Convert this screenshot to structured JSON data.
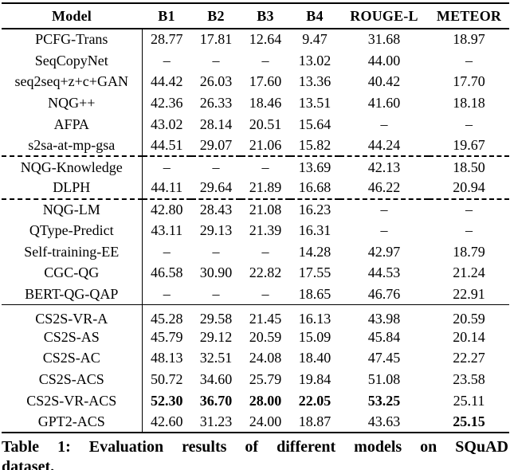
{
  "table": {
    "headers": [
      "Model",
      "B1",
      "B2",
      "B3",
      "B4",
      "ROUGE-L",
      "METEOR"
    ],
    "missing_value_glyph": "–",
    "rows": [
      {
        "model": "PCFG-Trans",
        "values": [
          "28.77",
          "17.81",
          "12.64",
          "9.47",
          "31.68",
          "18.97"
        ],
        "bold": [],
        "separator_before": null
      },
      {
        "model": "SeqCopyNet",
        "values": [
          "–",
          "–",
          "–",
          "13.02",
          "44.00",
          "–"
        ],
        "bold": [],
        "separator_before": null
      },
      {
        "model": "seq2seq+z+c+GAN",
        "values": [
          "44.42",
          "26.03",
          "17.60",
          "13.36",
          "40.42",
          "17.70"
        ],
        "bold": [],
        "separator_before": null
      },
      {
        "model": "NQG++",
        "values": [
          "42.36",
          "26.33",
          "18.46",
          "13.51",
          "41.60",
          "18.18"
        ],
        "bold": [],
        "separator_before": null
      },
      {
        "model": "AFPA",
        "values": [
          "43.02",
          "28.14",
          "20.51",
          "15.64",
          "–",
          "–"
        ],
        "bold": [],
        "separator_before": null
      },
      {
        "model": "s2sa-at-mp-gsa",
        "values": [
          "44.51",
          "29.07",
          "21.06",
          "15.82",
          "44.24",
          "19.67"
        ],
        "bold": [],
        "separator_before": null
      },
      {
        "model": "NQG-Knowledge",
        "values": [
          "–",
          "–",
          "–",
          "13.69",
          "42.13",
          "18.50"
        ],
        "bold": [],
        "separator_before": "dashed"
      },
      {
        "model": "DLPH",
        "values": [
          "44.11",
          "29.64",
          "21.89",
          "16.68",
          "46.22",
          "20.94"
        ],
        "bold": [],
        "separator_before": null
      },
      {
        "model": "NQG-LM",
        "values": [
          "42.80",
          "28.43",
          "21.08",
          "16.23",
          "–",
          "–"
        ],
        "bold": [],
        "separator_before": "dashed"
      },
      {
        "model": "QType-Predict",
        "values": [
          "43.11",
          "29.13",
          "21.39",
          "16.31",
          "–",
          "–"
        ],
        "bold": [],
        "separator_before": null
      },
      {
        "model": "Self-training-EE",
        "values": [
          "–",
          "–",
          "–",
          "14.28",
          "42.97",
          "18.79"
        ],
        "bold": [],
        "separator_before": null
      },
      {
        "model": "CGC-QG",
        "values": [
          "46.58",
          "30.90",
          "22.82",
          "17.55",
          "44.53",
          "21.24"
        ],
        "bold": [],
        "separator_before": null
      },
      {
        "model": "BERT-QG-QAP",
        "values": [
          "–",
          "–",
          "–",
          "18.65",
          "46.76",
          "22.91"
        ],
        "bold": [],
        "separator_before": null
      },
      {
        "model": "CS2S-VR-A",
        "values": [
          "45.28",
          "29.58",
          "21.45",
          "16.13",
          "43.98",
          "20.59"
        ],
        "bold": [],
        "separator_before": "solid"
      },
      {
        "model": "CS2S-AS",
        "values": [
          "45.79",
          "29.12",
          "20.59",
          "15.09",
          "45.84",
          "20.14"
        ],
        "bold": [],
        "separator_before": null
      },
      {
        "model": "CS2S-AC",
        "values": [
          "48.13",
          "32.51",
          "24.08",
          "18.40",
          "47.45",
          "22.27"
        ],
        "bold": [],
        "separator_before": null
      },
      {
        "model": "CS2S-ACS",
        "values": [
          "50.72",
          "34.60",
          "25.79",
          "19.84",
          "51.08",
          "23.58"
        ],
        "bold": [],
        "separator_before": null
      },
      {
        "model": "CS2S-VR-ACS",
        "values": [
          "52.30",
          "36.70",
          "28.00",
          "22.05",
          "53.25",
          "25.11"
        ],
        "bold": [
          0,
          1,
          2,
          3,
          4
        ],
        "separator_before": null
      },
      {
        "model": "GPT2-ACS",
        "values": [
          "42.60",
          "31.23",
          "24.00",
          "18.87",
          "43.63",
          "25.15"
        ],
        "bold": [
          5
        ],
        "separator_before": null
      }
    ]
  },
  "caption": {
    "line1": "Table 1: Evaluation results of different models on SQuAD",
    "line2": "dataset."
  }
}
